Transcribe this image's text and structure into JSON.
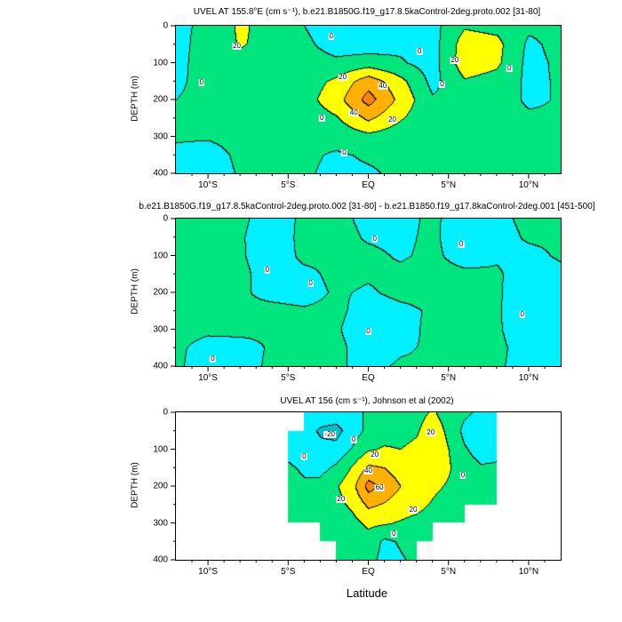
{
  "figure": {
    "background": "#ffffff"
  },
  "palette": [
    {
      "max": -20,
      "color": "#00c0cd",
      "meaning": "below -20 cm/s"
    },
    {
      "max": 0,
      "color": "#00f0ff",
      "meaning": "-20 to 0 cm/s"
    },
    {
      "max": 20,
      "color": "#00e57d",
      "meaning": "0 to 20 cm/s"
    },
    {
      "max": 40,
      "color": "#ffff00",
      "meaning": "20 to 40 cm/s"
    },
    {
      "max": 60,
      "color": "#ffb000",
      "meaning": "40 to 60 cm/s"
    },
    {
      "max": 1000,
      "color": "#ff8400",
      "meaning": "above 60 cm/s"
    }
  ],
  "chart_data": [
    {
      "type": "heatmap",
      "subtype": "filled-contour-section",
      "title": "UVEL AT 155.8°E (cm s⁻¹), b.e21.B1850G.f19_g17.8.5kaControl-2deg.proto.002 [31-80]",
      "ylabel": "DEPTH (m)",
      "xlabel": "",
      "units": "cm s⁻¹",
      "x_range": [
        -12,
        12
      ],
      "y_range": [
        0,
        400
      ],
      "y_inverted": true,
      "contour_interval": 20,
      "x_ticks": [
        {
          "value": -10,
          "label": "10°S"
        },
        {
          "value": -5,
          "label": "5°S"
        },
        {
          "value": 0,
          "label": "EQ"
        },
        {
          "value": 5,
          "label": "5°N"
        },
        {
          "value": 10,
          "label": "10°N"
        }
      ],
      "y_ticks": [
        {
          "value": 0,
          "label": "0"
        },
        {
          "value": 100,
          "label": "100"
        },
        {
          "value": 200,
          "label": "200"
        },
        {
          "value": 300,
          "label": "300"
        },
        {
          "value": 400,
          "label": "400"
        }
      ],
      "grid": {
        "lats": [
          -12,
          -10,
          -8,
          -6,
          -4,
          -2,
          0,
          2,
          4,
          6,
          8,
          10,
          12
        ],
        "depths": [
          0,
          50,
          100,
          150,
          200,
          250,
          300,
          350,
          400
        ],
        "values": [
          [
            -2,
            2,
            24,
            10,
            0,
            -12,
            -14,
            -8,
            -6,
            18,
            14,
            4,
            5
          ],
          [
            -3,
            4,
            22,
            12,
            4,
            -8,
            -10,
            -4,
            -8,
            30,
            26,
            -4,
            6
          ],
          [
            -3,
            5,
            12,
            10,
            8,
            4,
            10,
            2,
            -8,
            32,
            24,
            -6,
            4
          ],
          [
            -2,
            4,
            8,
            8,
            10,
            24,
            52,
            26,
            -6,
            18,
            12,
            -4,
            2
          ],
          [
            0,
            3,
            6,
            6,
            12,
            32,
            68,
            34,
            2,
            8,
            6,
            -2,
            1
          ],
          [
            1,
            2,
            4,
            5,
            8,
            18,
            44,
            22,
            4,
            5,
            4,
            2,
            1
          ],
          [
            1,
            1,
            3,
            4,
            5,
            6,
            14,
            8,
            4,
            3,
            3,
            2,
            1
          ],
          [
            -2,
            -4,
            2,
            3,
            3,
            -2,
            2,
            4,
            3,
            2,
            2,
            1,
            1
          ],
          [
            -3,
            -5,
            1,
            2,
            2,
            -4,
            -2,
            3,
            2,
            2,
            2,
            1,
            1
          ]
        ]
      },
      "contour_labels": [
        {
          "text": "0",
          "lat": -10.4,
          "depth": 155
        },
        {
          "text": "0",
          "lat": -2.3,
          "depth": 30
        },
        {
          "text": "0",
          "lat": -2.9,
          "depth": 250
        },
        {
          "text": "0",
          "lat": -1.5,
          "depth": 345
        },
        {
          "text": "0",
          "lat": 3.2,
          "depth": 70
        },
        {
          "text": "0",
          "lat": 4.6,
          "depth": 160
        },
        {
          "text": "0",
          "lat": 8.8,
          "depth": 115
        },
        {
          "text": "20",
          "lat": -8.2,
          "depth": 55
        },
        {
          "text": "20",
          "lat": -1.6,
          "depth": 140
        },
        {
          "text": "20",
          "lat": 1.5,
          "depth": 255
        },
        {
          "text": "40",
          "lat": -0.9,
          "depth": 235
        },
        {
          "text": "40",
          "lat": 0.9,
          "depth": 165
        },
        {
          "text": "20",
          "lat": 5.4,
          "depth": 95
        }
      ]
    },
    {
      "type": "heatmap",
      "subtype": "filled-contour-section",
      "title": "b.e21.B1850G.f19_g17.8.5kaControl-2deg.proto.002 [31-80] - b.e21.B1850.f19_g17.8kaControl-2deg.001 [451-500]",
      "ylabel": "DEPTH (m)",
      "xlabel": "",
      "units": "cm s⁻¹",
      "x_range": [
        -12,
        12
      ],
      "y_range": [
        0,
        400
      ],
      "y_inverted": true,
      "contour_interval": 20,
      "x_ticks": [
        {
          "value": -10,
          "label": "10°S"
        },
        {
          "value": -5,
          "label": "5°S"
        },
        {
          "value": 0,
          "label": "EQ"
        },
        {
          "value": 5,
          "label": "5°N"
        },
        {
          "value": 10,
          "label": "10°N"
        }
      ],
      "y_ticks": [
        {
          "value": 0,
          "label": "0"
        },
        {
          "value": 100,
          "label": "100"
        },
        {
          "value": 200,
          "label": "200"
        },
        {
          "value": 300,
          "label": "300"
        },
        {
          "value": 400,
          "label": "400"
        }
      ],
      "grid": {
        "lats": [
          -12,
          -10,
          -8,
          -6,
          -4,
          -2,
          0,
          2,
          4,
          6,
          8,
          10,
          12
        ],
        "depths": [
          0,
          50,
          100,
          150,
          200,
          250,
          300,
          350,
          400
        ],
        "values": [
          [
            1,
            1,
            2,
            -5,
            2,
            2,
            -2,
            -3,
            2,
            -6,
            -2,
            2,
            1
          ],
          [
            1,
            2,
            1,
            -6,
            3,
            3,
            -1,
            -2,
            2,
            -7,
            -3,
            1,
            1
          ],
          [
            2,
            2,
            1,
            -5,
            2,
            1,
            2,
            -1,
            2,
            -4,
            -1,
            -2,
            1
          ],
          [
            1,
            1,
            2,
            -4,
            -2,
            2,
            1,
            2,
            3,
            2,
            1,
            -4,
            -2
          ],
          [
            1,
            1,
            1,
            -2,
            -3,
            1,
            -1,
            2,
            2,
            1,
            1,
            -5,
            -3
          ],
          [
            1,
            2,
            1,
            2,
            1,
            2,
            -4,
            -2,
            1,
            2,
            1,
            -6,
            -3
          ],
          [
            2,
            1,
            2,
            1,
            2,
            1,
            -6,
            -3,
            2,
            1,
            1,
            -5,
            -2
          ],
          [
            1,
            -2,
            -3,
            1,
            1,
            2,
            -4,
            -1,
            1,
            1,
            2,
            -4,
            -2
          ],
          [
            1,
            -3,
            -4,
            2,
            1,
            1,
            -2,
            1,
            1,
            1,
            1,
            -3,
            -1
          ]
        ]
      },
      "contour_labels": [
        {
          "text": "0",
          "lat": -6.3,
          "depth": 140
        },
        {
          "text": "0",
          "lat": -3.6,
          "depth": 175
        },
        {
          "text": "0",
          "lat": 0.4,
          "depth": 55
        },
        {
          "text": "0",
          "lat": 0.0,
          "depth": 305
        },
        {
          "text": "0",
          "lat": 5.8,
          "depth": 70
        },
        {
          "text": "0",
          "lat": 9.6,
          "depth": 260
        },
        {
          "text": "0",
          "lat": -9.7,
          "depth": 380
        }
      ]
    },
    {
      "type": "heatmap",
      "subtype": "filled-contour-section",
      "title": "UVEL AT 156 (cm s⁻¹), Johnson et al (2002)",
      "ylabel": "DEPTH (m)",
      "xlabel": "Latitude",
      "units": "cm s⁻¹",
      "x_range": [
        -12,
        12
      ],
      "y_range": [
        0,
        400
      ],
      "y_inverted": true,
      "contour_interval": 20,
      "x_ticks": [
        {
          "value": -10,
          "label": "10°S"
        },
        {
          "value": -5,
          "label": "5°S"
        },
        {
          "value": 0,
          "label": "EQ"
        },
        {
          "value": 5,
          "label": "5°N"
        },
        {
          "value": 10,
          "label": "10°N"
        }
      ],
      "y_ticks": [
        {
          "value": 0,
          "label": "0"
        },
        {
          "value": 100,
          "label": "100"
        },
        {
          "value": 200,
          "label": "200"
        },
        {
          "value": 300,
          "label": "300"
        },
        {
          "value": 400,
          "label": "400"
        }
      ],
      "grid": {
        "lats": [
          -12,
          -11,
          -10,
          -9,
          -8,
          -7,
          -6,
          -5,
          -4,
          -3,
          -2,
          -1,
          0,
          1,
          2,
          3,
          4,
          5,
          6,
          7,
          8,
          9,
          10,
          11,
          12
        ],
        "depths": [
          0,
          50,
          100,
          150,
          200,
          250,
          300,
          350,
          400
        ],
        "values": [
          [
            null,
            null,
            null,
            null,
            null,
            null,
            null,
            null,
            -8,
            -12,
            -10,
            -4,
            2,
            6,
            10,
            14,
            22,
            12,
            4,
            -4,
            -6,
            null,
            null,
            null,
            null
          ],
          [
            null,
            null,
            null,
            null,
            null,
            null,
            null,
            -6,
            -14,
            -22,
            -26,
            -10,
            6,
            12,
            14,
            18,
            30,
            16,
            -6,
            -10,
            -8,
            null,
            null,
            null,
            null
          ],
          [
            null,
            null,
            null,
            null,
            null,
            null,
            null,
            -4,
            -10,
            -16,
            -14,
            2,
            18,
            22,
            20,
            24,
            34,
            20,
            2,
            -8,
            -4,
            null,
            null,
            null,
            null
          ],
          [
            null,
            null,
            null,
            null,
            null,
            null,
            null,
            2,
            -2,
            -6,
            4,
            22,
            44,
            40,
            30,
            28,
            30,
            22,
            8,
            2,
            2,
            null,
            null,
            null,
            null
          ],
          [
            null,
            null,
            null,
            null,
            null,
            null,
            null,
            4,
            2,
            6,
            18,
            34,
            68,
            54,
            40,
            30,
            24,
            18,
            10,
            4,
            4,
            null,
            null,
            null,
            null
          ],
          [
            null,
            null,
            null,
            null,
            null,
            null,
            null,
            2,
            4,
            8,
            14,
            24,
            44,
            38,
            30,
            26,
            18,
            12,
            8,
            2,
            2,
            null,
            null,
            null,
            null
          ],
          [
            null,
            null,
            null,
            null,
            null,
            null,
            null,
            0,
            2,
            4,
            8,
            14,
            24,
            22,
            18,
            14,
            10,
            6,
            4,
            null,
            null,
            null,
            null,
            null,
            null
          ],
          [
            null,
            null,
            null,
            null,
            null,
            null,
            null,
            null,
            null,
            2,
            4,
            8,
            12,
            -4,
            2,
            8,
            6,
            null,
            null,
            null,
            null,
            null,
            null,
            null,
            null
          ],
          [
            null,
            null,
            null,
            null,
            null,
            null,
            null,
            null,
            null,
            null,
            2,
            4,
            6,
            -6,
            -2,
            4,
            null,
            null,
            null,
            null,
            null,
            null,
            null,
            null,
            null
          ]
        ]
      },
      "contour_labels": [
        {
          "text": "-20",
          "lat": -2.4,
          "depth": 60
        },
        {
          "text": "0",
          "lat": -4.0,
          "depth": 120
        },
        {
          "text": "0",
          "lat": -0.9,
          "depth": 75
        },
        {
          "text": "20",
          "lat": 0.4,
          "depth": 115
        },
        {
          "text": "40",
          "lat": 0.0,
          "depth": 160
        },
        {
          "text": "60",
          "lat": 0.7,
          "depth": 205
        },
        {
          "text": "20",
          "lat": -1.7,
          "depth": 235
        },
        {
          "text": "20",
          "lat": 3.9,
          "depth": 55
        },
        {
          "text": "20",
          "lat": 2.8,
          "depth": 265
        },
        {
          "text": "0",
          "lat": 5.9,
          "depth": 170
        },
        {
          "text": "0",
          "lat": 1.6,
          "depth": 330
        }
      ]
    }
  ]
}
